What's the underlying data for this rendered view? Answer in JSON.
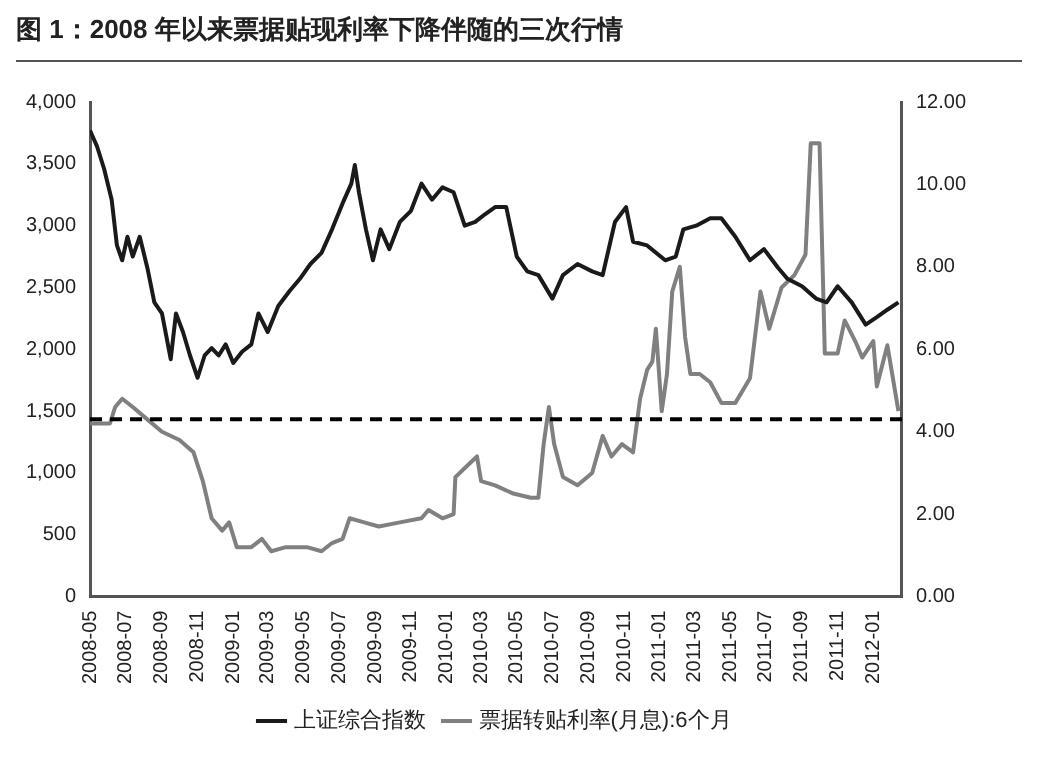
{
  "chart_data": {
    "type": "line",
    "title": "图 1：2008 年以来票据贴现利率下降伴随的三次行情",
    "xlim": [
      "2008-05-01",
      "2012-02-19"
    ],
    "xticks": [
      "2008-05",
      "2008-07",
      "2008-09",
      "2008-11",
      "2009-01",
      "2009-03",
      "2009-05",
      "2009-07",
      "2009-09",
      "2009-11",
      "2010-01",
      "2010-03",
      "2010-05",
      "2010-07",
      "2010-09",
      "2010-11",
      "2011-01",
      "2011-03",
      "2011-05",
      "2011-07",
      "2011-09",
      "2011-11",
      "2012-01"
    ],
    "ylim": [
      0,
      4000
    ],
    "yticks": [
      {
        "value": 0,
        "label": "0"
      },
      {
        "value": 500,
        "label": "500"
      },
      {
        "value": 1000,
        "label": "1,000"
      },
      {
        "value": 1500,
        "label": "1,500"
      },
      {
        "value": 2000,
        "label": "2,000"
      },
      {
        "value": 2500,
        "label": "2,500"
      },
      {
        "value": 3000,
        "label": "3,000"
      },
      {
        "value": 3500,
        "label": "3,500"
      },
      {
        "value": 4000,
        "label": "4,000"
      }
    ],
    "y2lim": [
      0,
      12
    ],
    "y2ticks": [
      {
        "value": 0,
        "label": "0.00"
      },
      {
        "value": 2,
        "label": "2.00"
      },
      {
        "value": 4,
        "label": "4.00"
      },
      {
        "value": 6,
        "label": "6.00"
      },
      {
        "value": 8,
        "label": "8.00"
      },
      {
        "value": 10,
        "label": "10.00"
      },
      {
        "value": 12,
        "label": "12.00"
      }
    ],
    "grid": false,
    "legend": "bottom",
    "line_style": "solid",
    "ref_lines": [
      {
        "axis": "y2",
        "value": 4.3,
        "color": "#000000",
        "line_style": "dashed"
      }
    ],
    "series": [
      {
        "name": "上证综合指数",
        "color": "#1a1a1a",
        "x": [
          "2008-05-01",
          "2008-05-13",
          "2008-05-25",
          "2008-06-07",
          "2008-06-16",
          "2008-06-25",
          "2008-07-04",
          "2008-07-13",
          "2008-07-25",
          "2008-08-07",
          "2008-08-19",
          "2008-09-01",
          "2008-09-16",
          "2008-09-25",
          "2008-10-07",
          "2008-10-19",
          "2008-11-01",
          "2008-11-13",
          "2008-11-25",
          "2008-12-07",
          "2008-12-19",
          "2009-01-01",
          "2009-01-16",
          "2009-02-01",
          "2009-02-13",
          "2009-03-01",
          "2009-03-19",
          "2009-04-07",
          "2009-04-25",
          "2009-05-13",
          "2009-06-01",
          "2009-06-19",
          "2009-07-07",
          "2009-07-22",
          "2009-07-28",
          "2009-08-04",
          "2009-08-16",
          "2009-08-28",
          "2009-09-10",
          "2009-09-25",
          "2009-10-13",
          "2009-11-01",
          "2009-11-19",
          "2009-12-07",
          "2009-12-25",
          "2010-01-13",
          "2010-02-01",
          "2010-02-19",
          "2010-03-07",
          "2010-03-25",
          "2010-04-13",
          "2010-05-01",
          "2010-05-19",
          "2010-06-07",
          "2010-07-01",
          "2010-07-19",
          "2010-08-13",
          "2010-09-07",
          "2010-09-25",
          "2010-10-16",
          "2010-11-04",
          "2010-11-16",
          "2010-12-10",
          "2011-01-10",
          "2011-01-28",
          "2011-02-10",
          "2011-03-04",
          "2011-03-28",
          "2011-04-16",
          "2011-05-10",
          "2011-06-04",
          "2011-06-28",
          "2011-07-22",
          "2011-08-07",
          "2011-09-01",
          "2011-09-25",
          "2011-10-13",
          "2011-11-01",
          "2011-11-25",
          "2011-12-19",
          "2012-01-07",
          "2012-01-25",
          "2012-02-13"
        ],
        "values": [
          3770,
          3640,
          3460,
          3210,
          2840,
          2720,
          2910,
          2750,
          2910,
          2660,
          2380,
          2290,
          1920,
          2290,
          2140,
          1950,
          1770,
          1950,
          2010,
          1950,
          2040,
          1890,
          1980,
          2040,
          2290,
          2140,
          2350,
          2470,
          2570,
          2690,
          2780,
          2970,
          3180,
          3340,
          3490,
          3270,
          2970,
          2720,
          2970,
          2810,
          3030,
          3120,
          3340,
          3210,
          3310,
          3270,
          3000,
          3030,
          3090,
          3150,
          3150,
          2750,
          2630,
          2600,
          2410,
          2600,
          2690,
          2630,
          2600,
          3030,
          3150,
          2870,
          2840,
          2720,
          2750,
          2970,
          3000,
          3060,
          3060,
          2910,
          2720,
          2810,
          2660,
          2570,
          2510,
          2410,
          2380,
          2510,
          2380,
          2200,
          2260,
          2320,
          2380
        ]
      },
      {
        "name": "票据转贴利率(月息):6个月",
        "color": "#808080",
        "axis": "y2",
        "x": [
          "2008-05-01",
          "2008-06-04",
          "2008-06-13",
          "2008-06-25",
          "2008-07-13",
          "2008-08-07",
          "2008-09-01",
          "2008-10-01",
          "2008-10-25",
          "2008-11-10",
          "2008-11-25",
          "2008-12-13",
          "2008-12-25",
          "2009-01-07",
          "2009-02-01",
          "2009-02-19",
          "2009-03-07",
          "2009-04-01",
          "2009-05-07",
          "2009-06-01",
          "2009-06-19",
          "2009-07-07",
          "2009-07-19",
          "2009-08-13",
          "2009-09-07",
          "2009-10-13",
          "2009-11-19",
          "2009-12-01",
          "2009-12-25",
          "2010-01-13",
          "2010-01-16",
          "2010-02-07",
          "2010-02-22",
          "2010-03-01",
          "2010-03-25",
          "2010-04-25",
          "2010-05-25",
          "2010-06-07",
          "2010-06-16",
          "2010-06-25",
          "2010-07-04",
          "2010-07-19",
          "2010-08-13",
          "2010-09-07",
          "2010-09-25",
          "2010-10-10",
          "2010-10-28",
          "2010-11-16",
          "2010-11-28",
          "2010-12-10",
          "2010-12-19",
          "2010-12-25",
          "2011-01-04",
          "2011-01-13",
          "2011-01-22",
          "2011-02-04",
          "2011-02-13",
          "2011-02-22",
          "2011-03-10",
          "2011-03-28",
          "2011-04-16",
          "2011-05-10",
          "2011-06-04",
          "2011-06-22",
          "2011-07-07",
          "2011-07-28",
          "2011-08-19",
          "2011-09-07",
          "2011-09-16",
          "2011-10-01",
          "2011-10-10",
          "2011-11-01",
          "2011-11-13",
          "2011-12-01",
          "2011-12-13",
          "2012-01-01",
          "2012-01-07",
          "2012-01-25",
          "2012-02-13"
        ],
        "values": [
          4.2,
          4.2,
          4.6,
          4.8,
          4.6,
          4.3,
          4.0,
          3.8,
          3.5,
          2.8,
          1.9,
          1.6,
          1.8,
          1.2,
          1.2,
          1.4,
          1.1,
          1.2,
          1.2,
          1.1,
          1.3,
          1.4,
          1.9,
          1.8,
          1.7,
          1.8,
          1.9,
          2.1,
          1.9,
          2.0,
          2.9,
          3.2,
          3.4,
          2.8,
          2.7,
          2.5,
          2.4,
          2.4,
          3.7,
          4.6,
          3.7,
          2.9,
          2.7,
          3.0,
          3.9,
          3.4,
          3.7,
          3.5,
          4.8,
          5.5,
          5.7,
          6.5,
          4.5,
          5.4,
          7.4,
          8.0,
          6.3,
          5.4,
          5.4,
          5.2,
          4.7,
          4.7,
          5.3,
          7.4,
          6.5,
          7.5,
          7.8,
          8.3,
          11.0,
          11.0,
          5.9,
          5.9,
          6.7,
          6.2,
          5.8,
          6.2,
          5.1,
          6.1,
          4.5
        ]
      }
    ]
  }
}
